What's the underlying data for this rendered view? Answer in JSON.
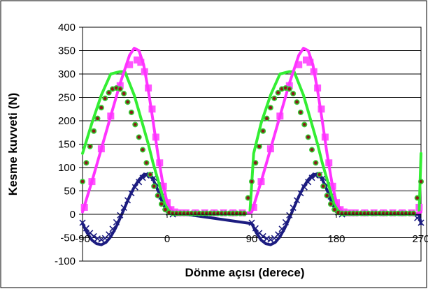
{
  "chart_data": {
    "type": "scatter",
    "title": "",
    "xlabel": "Dönme açısı (derece)",
    "ylabel": "Kesme kuvveti (N)",
    "xlim": [
      -90,
      270
    ],
    "ylim": [
      -100,
      400
    ],
    "x_ticks": [
      -90,
      0,
      90,
      180,
      270
    ],
    "y_ticks": [
      -100,
      -50,
      0,
      50,
      100,
      150,
      200,
      250,
      300,
      350,
      400
    ],
    "grid": "horizontal",
    "legend": "none",
    "colors": {
      "green_line": "#33ee33",
      "magenta_line": "#ff33ff",
      "magenta_squares": "#ff55ff",
      "dots_fill": "#8b1a1a",
      "dots_stroke": "#33cc33",
      "navy_line": "#1c1c80",
      "navy_crosses": "#1c1c80"
    },
    "series": [
      {
        "style": "line",
        "color_key": "green_line",
        "x": [
          -90,
          -80,
          -70,
          -60,
          -50,
          -45,
          -40,
          -35,
          -30,
          -25,
          -20,
          -15,
          -10,
          -5,
          0,
          5,
          10,
          15,
          20,
          30,
          60,
          88,
          92,
          100,
          110,
          120,
          130,
          135,
          140,
          145,
          150,
          155,
          160,
          165,
          170,
          175,
          180,
          185,
          190,
          195,
          200,
          210,
          240,
          268,
          270
        ],
        "y": [
          130,
          195,
          255,
          300,
          305,
          305,
          280,
          255,
          220,
          185,
          150,
          110,
          75,
          40,
          15,
          5,
          3,
          3,
          3,
          3,
          3,
          3,
          130,
          195,
          255,
          300,
          305,
          305,
          280,
          255,
          220,
          185,
          150,
          110,
          75,
          40,
          15,
          5,
          3,
          3,
          3,
          3,
          3,
          3,
          130
        ]
      },
      {
        "style": "line",
        "color_key": "magenta_line",
        "x": [
          -90,
          -80,
          -70,
          -60,
          -50,
          -40,
          -35,
          -30,
          -25,
          -20,
          -15,
          -10,
          -5,
          0,
          5,
          10,
          15,
          20,
          30,
          60,
          88,
          90,
          100,
          110,
          120,
          130,
          140,
          145,
          150,
          155,
          160,
          165,
          170,
          175,
          180,
          185,
          190,
          195,
          200,
          210,
          240,
          268,
          270
        ],
        "y": [
          5,
          70,
          140,
          210,
          280,
          340,
          355,
          350,
          320,
          265,
          200,
          130,
          70,
          25,
          8,
          3,
          3,
          3,
          3,
          3,
          3,
          5,
          70,
          140,
          210,
          280,
          340,
          355,
          350,
          320,
          265,
          200,
          130,
          70,
          25,
          8,
          3,
          3,
          3,
          3,
          3,
          3,
          5
        ]
      },
      {
        "style": "square",
        "color_key": "magenta_squares",
        "x": [
          -88,
          -80,
          -70,
          -60,
          -50,
          -40,
          -32,
          -28,
          -24,
          -20,
          -16,
          -12,
          -8,
          -4,
          0,
          4,
          8,
          12,
          16,
          20,
          30,
          40,
          50,
          60,
          70,
          80,
          92,
          100,
          110,
          120,
          130,
          140,
          148,
          152,
          156,
          160,
          164,
          168,
          172,
          176,
          180,
          184,
          188,
          192,
          196,
          200,
          210,
          220,
          230,
          240,
          250,
          260,
          268
        ],
        "y": [
          15,
          70,
          140,
          210,
          275,
          320,
          330,
          325,
          305,
          270,
          225,
          165,
          110,
          60,
          25,
          10,
          5,
          3,
          3,
          3,
          3,
          3,
          3,
          3,
          3,
          3,
          15,
          70,
          140,
          210,
          275,
          320,
          330,
          325,
          305,
          270,
          225,
          165,
          110,
          60,
          25,
          10,
          5,
          3,
          3,
          3,
          3,
          3,
          3,
          3,
          3,
          3,
          15
        ]
      },
      {
        "style": "dot",
        "color_key": "dots_fill",
        "x": [
          -90,
          -86,
          -82,
          -78,
          -74,
          -70,
          -66,
          -62,
          -58,
          -54,
          -50,
          -46,
          -42,
          -38,
          -34,
          -30,
          -26,
          -22,
          -18,
          -14,
          -10,
          -6,
          -2,
          2,
          6,
          10,
          14,
          18,
          22,
          26,
          30,
          34,
          38,
          42,
          46,
          50,
          54,
          58,
          62,
          66,
          70,
          74,
          78,
          82,
          86,
          90,
          94,
          98,
          102,
          106,
          110,
          114,
          118,
          122,
          126,
          130,
          134,
          138,
          142,
          146,
          150,
          154,
          158,
          162,
          166,
          170,
          174,
          178,
          182,
          186,
          190,
          194,
          198,
          202,
          206,
          210,
          214,
          218,
          222,
          226,
          230,
          234,
          238,
          242,
          246,
          250,
          254,
          258,
          262,
          266,
          270
        ],
        "y": [
          70,
          110,
          145,
          178,
          205,
          228,
          248,
          260,
          268,
          270,
          268,
          258,
          240,
          218,
          192,
          165,
          138,
          110,
          85,
          60,
          40,
          22,
          10,
          4,
          2,
          2,
          2,
          2,
          2,
          2,
          2,
          2,
          2,
          2,
          2,
          2,
          2,
          2,
          2,
          2,
          2,
          2,
          2,
          2,
          35,
          70,
          110,
          145,
          178,
          205,
          228,
          248,
          260,
          268,
          270,
          268,
          258,
          240,
          218,
          192,
          165,
          138,
          110,
          85,
          60,
          40,
          22,
          10,
          4,
          2,
          2,
          2,
          2,
          2,
          2,
          2,
          2,
          2,
          2,
          2,
          2,
          2,
          2,
          2,
          2,
          2,
          2,
          2,
          2,
          35,
          70
        ]
      },
      {
        "style": "line",
        "color_key": "navy_line",
        "x": [
          -90,
          -85,
          -80,
          -75,
          -70,
          -65,
          -60,
          -55,
          -50,
          -45,
          -40,
          -35,
          -30,
          -25,
          -20,
          -15,
          -10,
          -5,
          0,
          5,
          10,
          15,
          20,
          90,
          95,
          100,
          105,
          110,
          115,
          120,
          125,
          130,
          135,
          140,
          145,
          150,
          155,
          160,
          165,
          170,
          175,
          180,
          185,
          190,
          195,
          200,
          268,
          270
        ],
        "y": [
          -20,
          -40,
          -55,
          -63,
          -65,
          -60,
          -48,
          -30,
          -8,
          15,
          38,
          58,
          74,
          85,
          86,
          75,
          52,
          25,
          5,
          0,
          0,
          0,
          0,
          -20,
          -40,
          -55,
          -63,
          -65,
          -60,
          -48,
          -30,
          -8,
          15,
          38,
          58,
          74,
          85,
          86,
          75,
          52,
          25,
          5,
          0,
          0,
          0,
          0,
          0,
          -20
        ]
      },
      {
        "style": "cross",
        "color_key": "navy_crosses",
        "x": [
          -90,
          -86,
          -82,
          -78,
          -74,
          -70,
          -66,
          -62,
          -58,
          -54,
          -50,
          -46,
          -42,
          -38,
          -34,
          -30,
          -26,
          -22,
          -18,
          -14,
          -10,
          -6,
          -2,
          2,
          6,
          90,
          94,
          98,
          102,
          106,
          110,
          114,
          118,
          122,
          126,
          130,
          134,
          138,
          142,
          146,
          150,
          154,
          158,
          162,
          166,
          170,
          174,
          178,
          182,
          186,
          266,
          270
        ],
        "y": [
          -18,
          -30,
          -40,
          -47,
          -52,
          -54,
          -51,
          -43,
          -31,
          -17,
          -2,
          14,
          30,
          45,
          58,
          69,
          78,
          83,
          84,
          78,
          62,
          38,
          16,
          4,
          0,
          -18,
          -30,
          -40,
          -47,
          -52,
          -54,
          -51,
          -43,
          -31,
          -17,
          -2,
          14,
          30,
          45,
          58,
          69,
          78,
          83,
          84,
          78,
          62,
          38,
          16,
          4,
          0,
          -8,
          -18
        ]
      }
    ]
  }
}
